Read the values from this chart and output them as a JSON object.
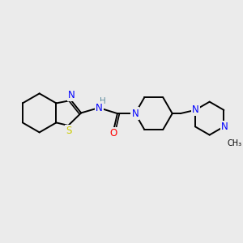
{
  "bg_color": "#ebebeb",
  "bond_color": "#000000",
  "bond_width": 1.4,
  "atom_colors": {
    "N": "#0000ff",
    "S": "#cccc00",
    "O": "#ff0000",
    "C": "#000000",
    "H": "#5f8ea0"
  },
  "font_size": 8.5
}
